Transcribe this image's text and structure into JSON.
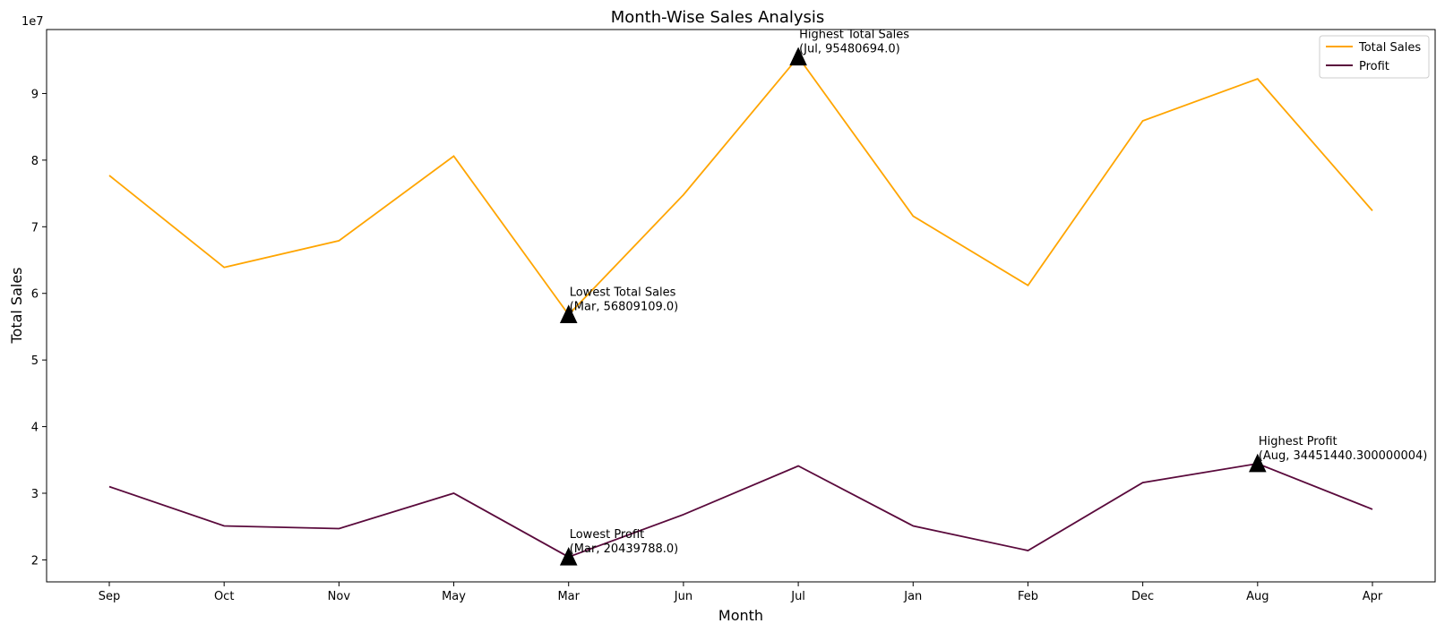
{
  "chart_data": {
    "type": "line",
    "title": "Month-Wise Sales Analysis",
    "xlabel": "Month",
    "ylabel": "Total Sales",
    "y_offset_text": "1e7",
    "categories": [
      "Sep",
      "Oct",
      "Nov",
      "May",
      "Mar",
      "Jun",
      "Jul",
      "Jan",
      "Feb",
      "Dec",
      "Aug",
      "Apr"
    ],
    "ylim": [
      16700000,
      99600000
    ],
    "yticks": [
      {
        "value": 20000000,
        "label": "2"
      },
      {
        "value": 30000000,
        "label": "3"
      },
      {
        "value": 40000000,
        "label": "4"
      },
      {
        "value": 50000000,
        "label": "5"
      },
      {
        "value": 60000000,
        "label": "6"
      },
      {
        "value": 70000000,
        "label": "7"
      },
      {
        "value": 80000000,
        "label": "8"
      },
      {
        "value": 90000000,
        "label": "9"
      }
    ],
    "grid": false,
    "legend_position": "top-right",
    "series": [
      {
        "name": "Total Sales",
        "color": "#FFA500",
        "values": [
          77700000,
          63900000,
          67900000,
          80600000,
          56809109.0,
          74800000,
          95480694.0,
          71600000,
          61200000,
          85900000,
          92200000,
          72400000
        ]
      },
      {
        "name": "Profit",
        "color": "#5A0A3C",
        "values": [
          31000000,
          25100000,
          24700000,
          30000000,
          20439788.0,
          26800000,
          34100000,
          25100000,
          21400000,
          31600000,
          34451440.300000004,
          27600000
        ]
      }
    ],
    "annotations": [
      {
        "category": "Jul",
        "value": 95480694.0,
        "line1": "Highest Total Sales",
        "line2": "(Jul, 95480694.0)"
      },
      {
        "category": "Mar",
        "value": 56809109.0,
        "line1": "Lowest Total Sales",
        "line2": "(Mar, 56809109.0)"
      },
      {
        "category": "Aug",
        "value": 34451440.300000004,
        "line1": "Highest Profit",
        "line2": "(Aug, 34451440.300000004)"
      },
      {
        "category": "Mar",
        "value": 20439788.0,
        "line1": "Lowest Profit",
        "line2": "(Mar, 20439788.0)"
      }
    ]
  }
}
